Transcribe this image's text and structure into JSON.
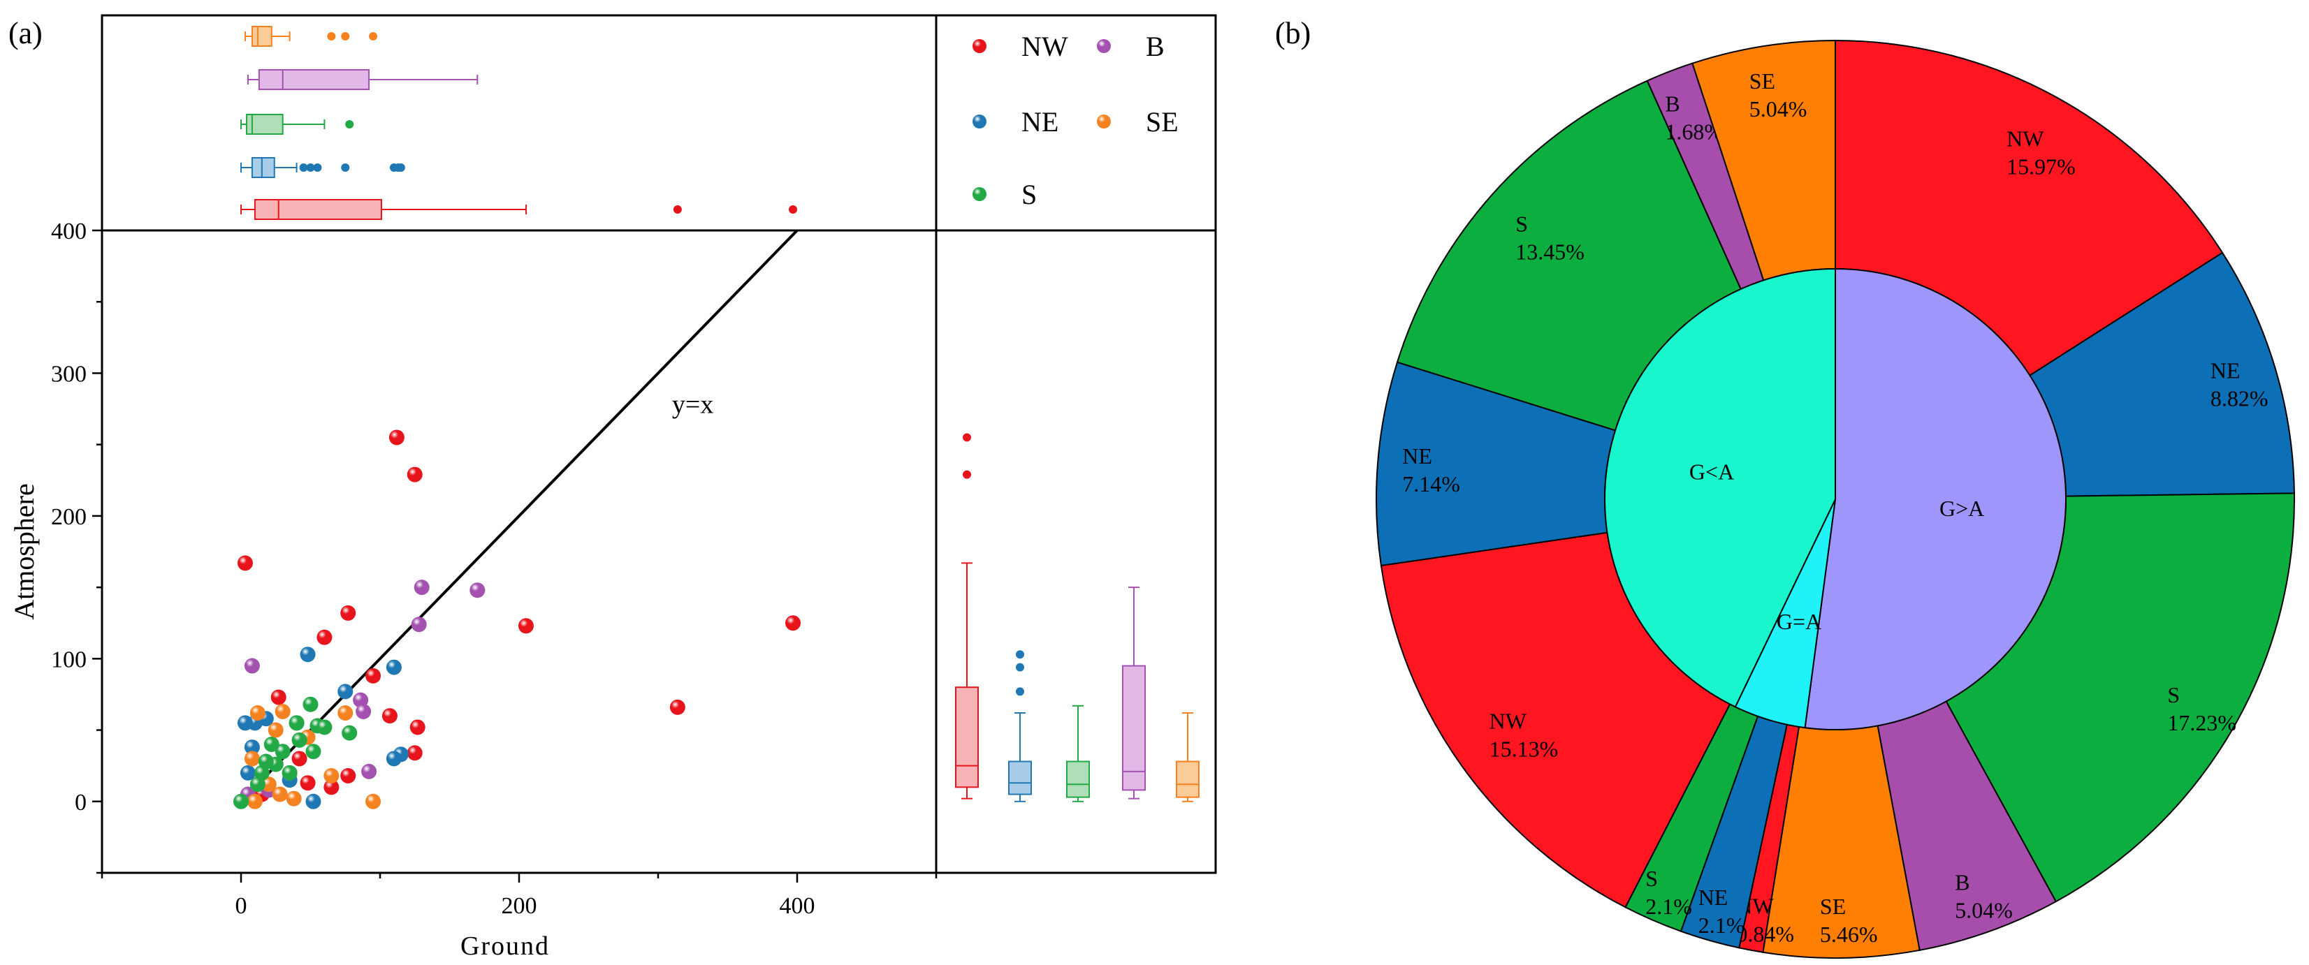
{
  "panel_a_label": "(a)",
  "panel_b_label": "(b)",
  "chart_data": [
    {
      "type": "scatter",
      "panel": "(a)",
      "xlabel": "Ground",
      "ylabel": "Atmosphere",
      "xlim": [
        -100,
        500
      ],
      "ylim": [
        -50,
        400
      ],
      "xticks": [
        0,
        200,
        400
      ],
      "yticks": [
        0,
        100,
        200,
        300,
        400
      ],
      "reference_line": {
        "label": "y=x",
        "from": [
          0,
          0
        ],
        "to": [
          400,
          400
        ]
      },
      "legend": [
        "NW",
        "B",
        "NE",
        "SE",
        "S"
      ],
      "colors": {
        "NW": "#e8141c",
        "B": "#a352b0",
        "NE": "#1f78b4",
        "SE": "#f58220",
        "S": "#22a845"
      },
      "series": [
        {
          "name": "NW",
          "points": [
            [
              112,
              255
            ],
            [
              125,
              229
            ],
            [
              3,
              167
            ],
            [
              77,
              132
            ],
            [
              60,
              115
            ],
            [
              95,
              88
            ],
            [
              107,
              60
            ],
            [
              127,
              52
            ],
            [
              125,
              34
            ],
            [
              205,
              123
            ],
            [
              397,
              125
            ],
            [
              314,
              66
            ],
            [
              77,
              18
            ],
            [
              65,
              10
            ],
            [
              48,
              13
            ],
            [
              27,
              73
            ],
            [
              42,
              30
            ],
            [
              15,
              5
            ],
            [
              8,
              2
            ]
          ]
        },
        {
          "name": "B",
          "points": [
            [
              8,
              95
            ],
            [
              170,
              148
            ],
            [
              130,
              150
            ],
            [
              128,
              124
            ],
            [
              86,
              71
            ],
            [
              88,
              63
            ],
            [
              92,
              21
            ],
            [
              35,
              20
            ],
            [
              20,
              8
            ],
            [
              5,
              5
            ]
          ]
        },
        {
          "name": "NE",
          "points": [
            [
              48,
              103
            ],
            [
              110,
              94
            ],
            [
              75,
              77
            ],
            [
              115,
              33
            ],
            [
              110,
              30
            ],
            [
              52,
              0
            ],
            [
              35,
              15
            ],
            [
              18,
              58
            ],
            [
              10,
              55
            ],
            [
              5,
              20
            ],
            [
              8,
              38
            ],
            [
              3,
              55
            ],
            [
              40,
              55
            ]
          ]
        },
        {
          "name": "SE",
          "points": [
            [
              95,
              0
            ],
            [
              75,
              62
            ],
            [
              65,
              18
            ],
            [
              48,
              45
            ],
            [
              30,
              63
            ],
            [
              25,
              50
            ],
            [
              12,
              62
            ],
            [
              38,
              2
            ],
            [
              20,
              12
            ],
            [
              8,
              30
            ],
            [
              28,
              5
            ],
            [
              10,
              0
            ]
          ]
        },
        {
          "name": "S",
          "points": [
            [
              50,
              68
            ],
            [
              55,
              53
            ],
            [
              42,
              43
            ],
            [
              78,
              48
            ],
            [
              60,
              52
            ],
            [
              40,
              55
            ],
            [
              52,
              35
            ],
            [
              30,
              35
            ],
            [
              25,
              26
            ],
            [
              15,
              20
            ],
            [
              35,
              20
            ],
            [
              12,
              12
            ],
            [
              0,
              0
            ],
            [
              22,
              40
            ],
            [
              18,
              28
            ]
          ]
        }
      ]
    },
    {
      "type": "boxplot",
      "panel": "(a) top marginal",
      "axis": "Ground",
      "series": [
        {
          "name": "NW",
          "min": 0,
          "q1": 10,
          "median": 27,
          "q3": 101,
          "max": 205,
          "outliers": [
            314,
            397
          ]
        },
        {
          "name": "NE",
          "min": 0,
          "q1": 8,
          "median": 15,
          "q3": 24,
          "max": 40,
          "outliers": [
            45,
            50,
            55,
            75,
            110,
            113,
            115
          ]
        },
        {
          "name": "S",
          "min": 0,
          "q1": 4,
          "median": 8,
          "q3": 30,
          "max": 60,
          "outliers": [
            78
          ]
        },
        {
          "name": "B",
          "min": 5,
          "q1": 13,
          "median": 30,
          "q3": 92,
          "max": 170,
          "outliers": []
        },
        {
          "name": "SE",
          "min": 3,
          "q1": 8,
          "median": 12,
          "q3": 22,
          "max": 35,
          "outliers": [
            65,
            75,
            95
          ]
        }
      ]
    },
    {
      "type": "boxplot",
      "panel": "(a) right marginal",
      "axis": "Atmosphere",
      "series": [
        {
          "name": "NW",
          "min": 2,
          "q1": 10,
          "median": 25,
          "q3": 80,
          "max": 167,
          "outliers": [
            229,
            255
          ]
        },
        {
          "name": "NE",
          "min": 0,
          "q1": 5,
          "median": 13,
          "q3": 28,
          "max": 62,
          "outliers": [
            77,
            94,
            103
          ]
        },
        {
          "name": "S",
          "min": 0,
          "q1": 3,
          "median": 12,
          "q3": 28,
          "max": 67,
          "outliers": []
        },
        {
          "name": "B",
          "min": 2,
          "q1": 8,
          "median": 21,
          "q3": 95,
          "max": 150,
          "outliers": []
        },
        {
          "name": "SE",
          "min": 0,
          "q1": 3,
          "median": 12,
          "q3": 28,
          "max": 62,
          "outliers": []
        }
      ]
    },
    {
      "type": "pie",
      "panel": "(b)",
      "inner": [
        {
          "label": "G>A",
          "value": 52.1,
          "color": "#9f96fb"
        },
        {
          "label": "G=A",
          "value": 5.04,
          "color": "#1ff3f8"
        },
        {
          "label": "G<A",
          "value": 42.86,
          "color": "#19f5cd"
        }
      ],
      "outer": [
        {
          "label": "NW",
          "percent": "15.97%",
          "value": 15.97,
          "color": "#ff1621"
        },
        {
          "label": "NE",
          "percent": "8.82%",
          "value": 8.82,
          "color": "#0d70b6"
        },
        {
          "label": "S",
          "percent": "17.23%",
          "value": 17.23,
          "color": "#0cae3f"
        },
        {
          "label": "B",
          "percent": "5.04%",
          "value": 5.04,
          "color": "#a74dac"
        },
        {
          "label": "SE",
          "percent": "5.46%",
          "value": 5.46,
          "color": "#ff7f02"
        },
        {
          "label": "NW",
          "percent": "0.84%",
          "value": 0.84,
          "color": "#ff1621"
        },
        {
          "label": "NE",
          "percent": "2.1%",
          "value": 2.1,
          "color": "#0d70b6"
        },
        {
          "label": "S",
          "percent": "2.1%",
          "value": 2.1,
          "color": "#0cae3f"
        },
        {
          "label": "NW",
          "percent": "15.13%",
          "value": 15.13,
          "color": "#ff1621"
        },
        {
          "label": "NE",
          "percent": "7.14%",
          "value": 7.14,
          "color": "#0d70b6"
        },
        {
          "label": "S",
          "percent": "13.45%",
          "value": 13.45,
          "color": "#0cae3f"
        },
        {
          "label": "B",
          "percent": "1.68%",
          "value": 1.68,
          "color": "#a74dac"
        },
        {
          "label": "SE",
          "percent": "5.04%",
          "value": 5.04,
          "color": "#ff7f02"
        }
      ]
    }
  ]
}
